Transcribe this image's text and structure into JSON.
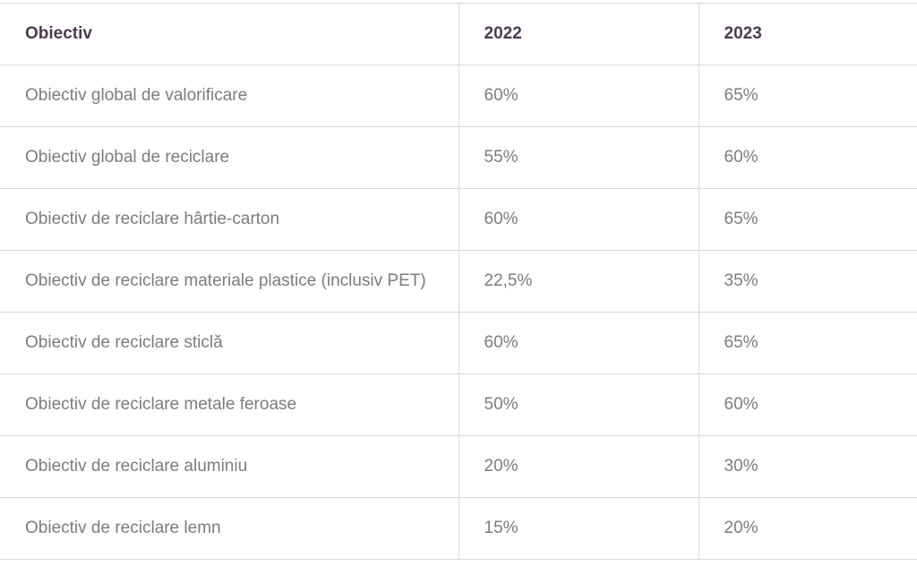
{
  "table": {
    "headers": [
      "Obiectiv",
      "2022",
      "2023"
    ],
    "rows": [
      [
        "Obiectiv global de valorificare",
        "60%",
        "65%"
      ],
      [
        "Obiectiv global de reciclare",
        "55%",
        "60%"
      ],
      [
        "Obiectiv de reciclare hârtie-carton",
        "60%",
        "65%"
      ],
      [
        "Obiectiv de reciclare materiale plastice (inclusiv PET)",
        "22,5%",
        "35%"
      ],
      [
        "Obiectiv de reciclare sticlă",
        "60%",
        "65%"
      ],
      [
        "Obiectiv de reciclare metale feroase",
        "50%",
        "60%"
      ],
      [
        "Obiectiv de reciclare aluminiu",
        "20%",
        "30%"
      ],
      [
        "Obiectiv de reciclare lemn",
        "15%",
        "20%"
      ]
    ]
  },
  "colors": {
    "header_text": "#4b3a4f",
    "body_text": "#7f7a80",
    "border": "#d8d8d8"
  }
}
